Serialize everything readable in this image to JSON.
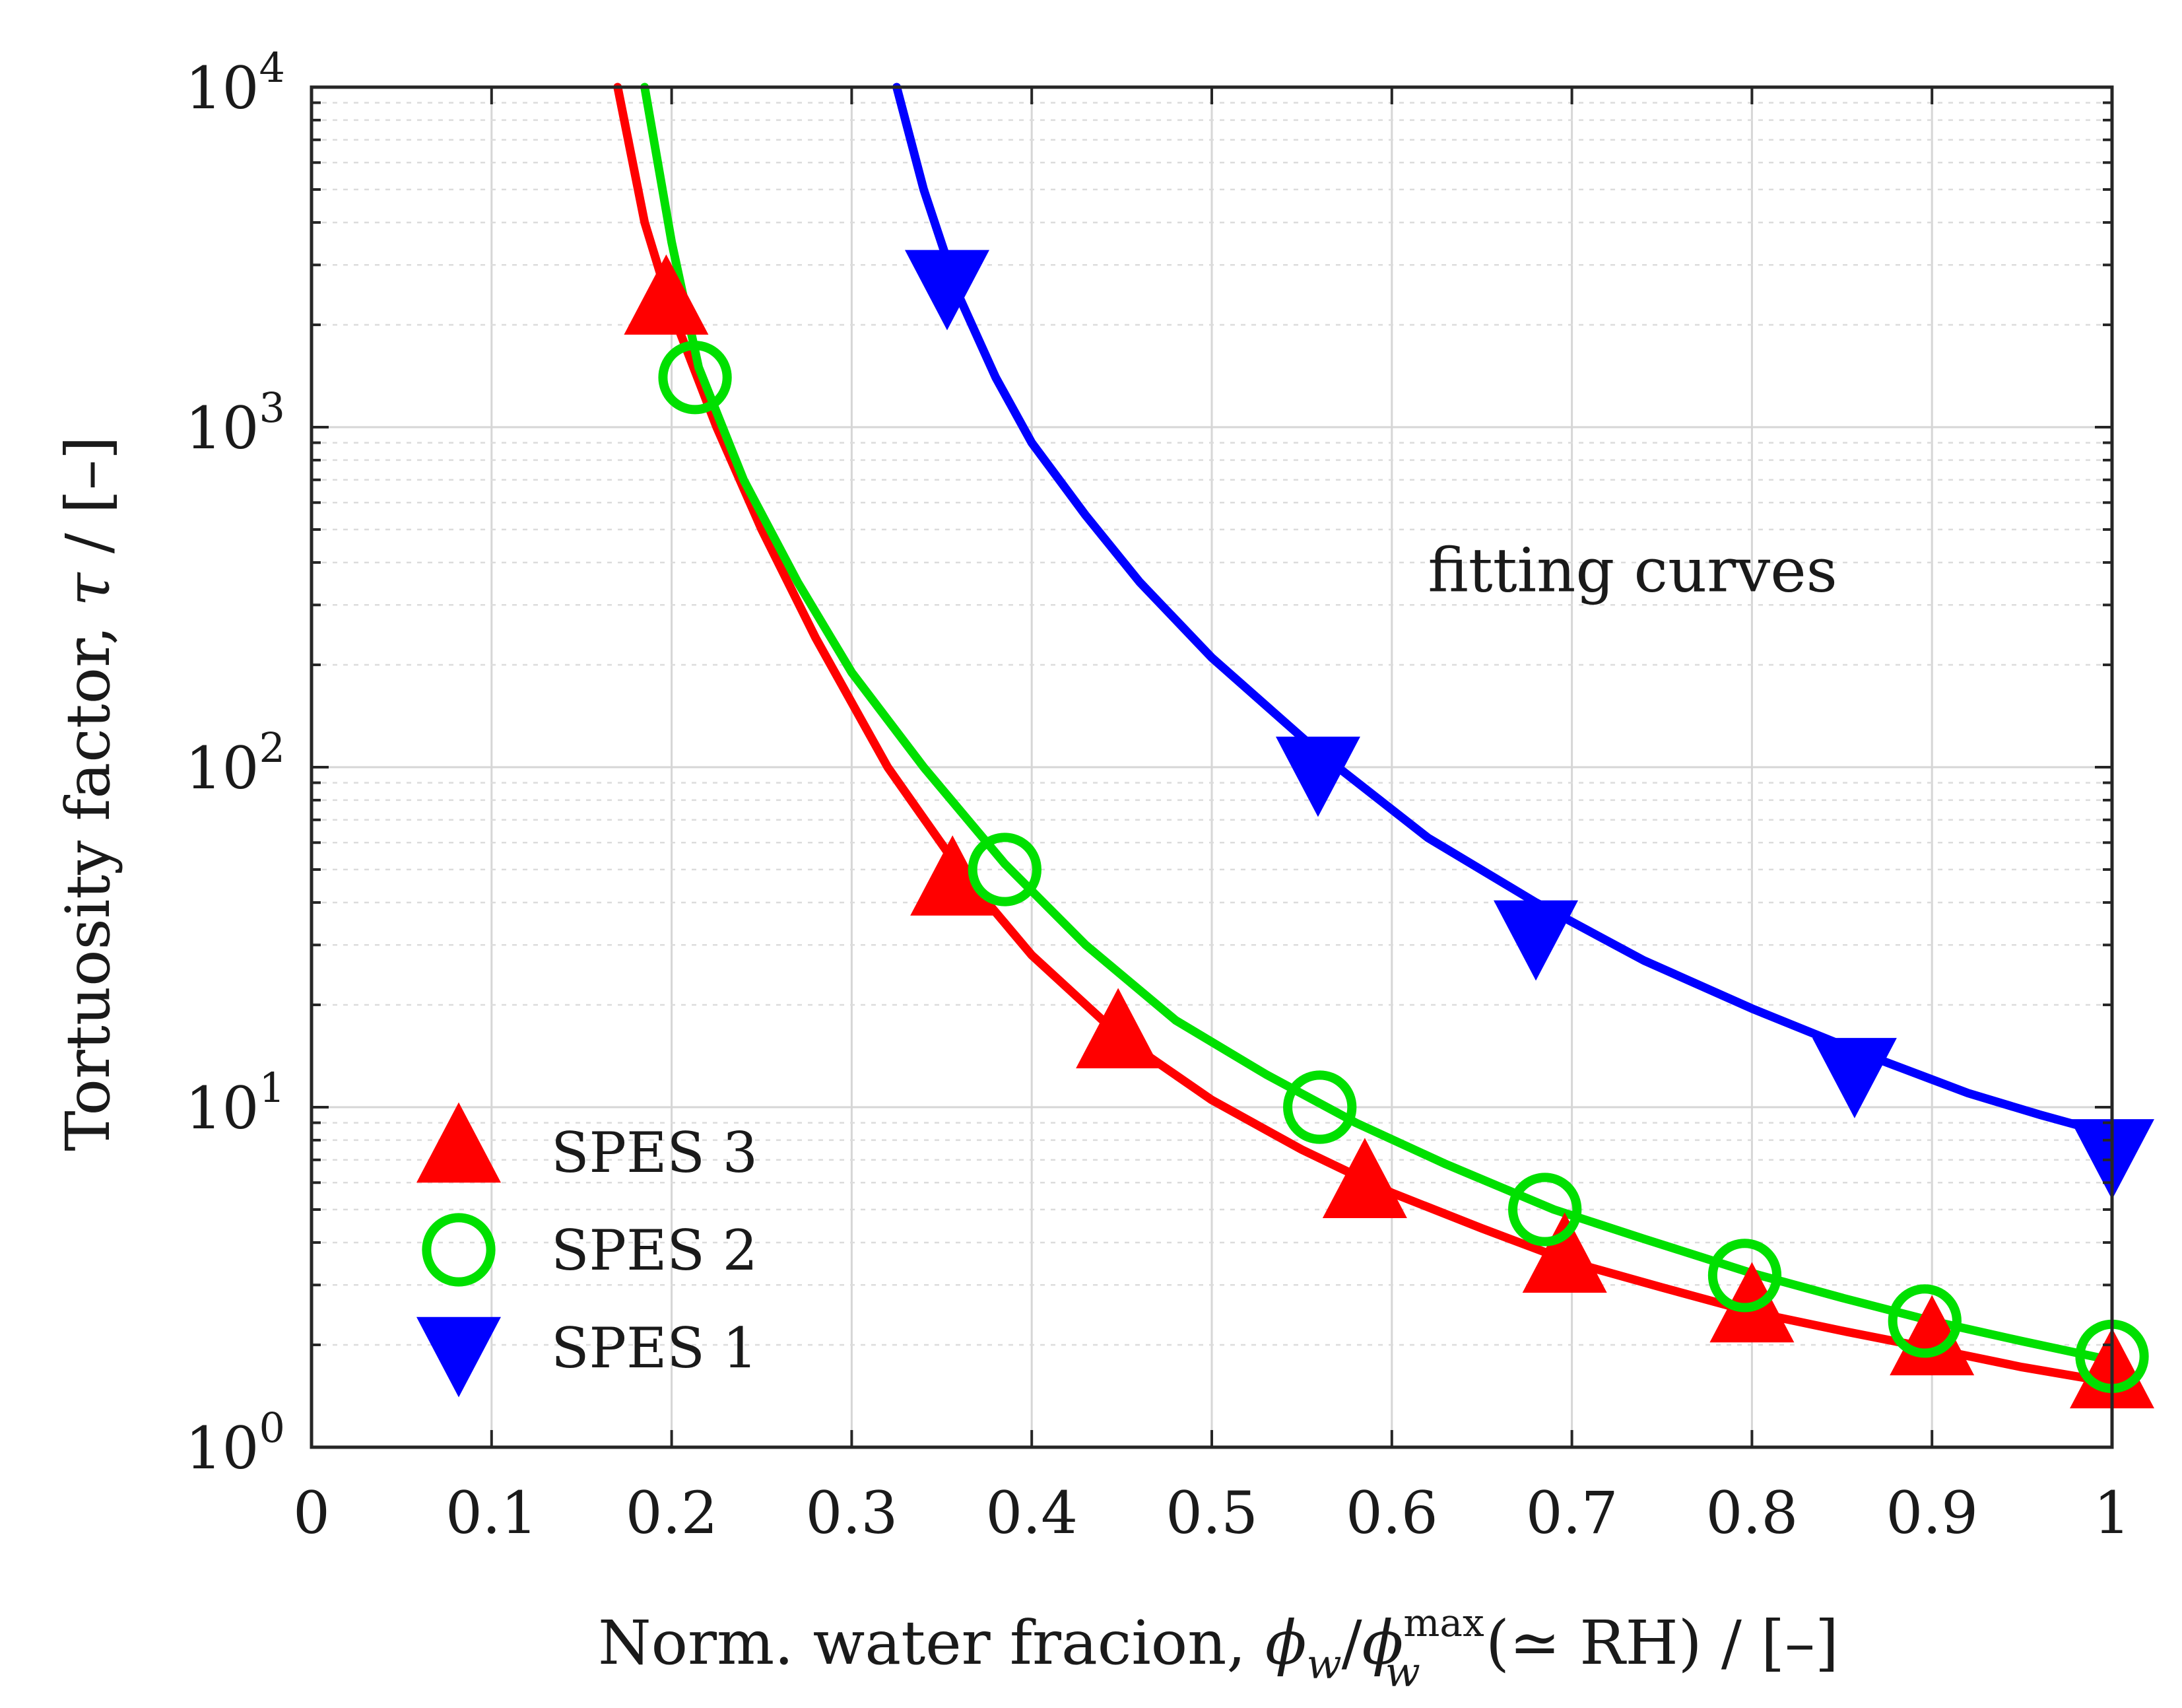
{
  "chart_data": {
    "type": "scatter",
    "title": "",
    "xlabel_parts": {
      "prefix": "Norm. water fracion, ",
      "phi_w": "ϕ",
      "sub_w": "w",
      "slash": "/",
      "phi_w_max": "ϕ",
      "sub_w2": "w",
      "sup_max": "max",
      "suffix": " (≃ RH) / [–]"
    },
    "ylabel_parts": {
      "prefix": "Tortuosity factor, ",
      "tau": "τ",
      "suffix": "  /  [–]"
    },
    "xlim": [
      0,
      1
    ],
    "ylim_log10": [
      0,
      4
    ],
    "yscale": "log",
    "grid": true,
    "x_ticks": [
      0,
      0.1,
      0.2,
      0.3,
      0.4,
      0.5,
      0.6,
      0.7,
      0.8,
      0.9,
      1
    ],
    "x_tick_labels": [
      "0",
      "0.1",
      "0.2",
      "0.3",
      "0.4",
      "0.5",
      "0.6",
      "0.7",
      "0.8",
      "0.9",
      "1"
    ],
    "y_ticks_exp": [
      0,
      1,
      2,
      3,
      4
    ],
    "y_tick_base": "10",
    "y_tick_exponents": [
      "0",
      "1",
      "2",
      "3",
      "4"
    ],
    "annotations": [
      {
        "text": "fitting curves",
        "x": 0.62,
        "y": 380
      }
    ],
    "legend_location": "bottom-left",
    "series": [
      {
        "name": "SPES 3",
        "color": "#ff0000",
        "marker": "triangle-up",
        "points": [
          {
            "x": 0.197,
            "y": 2300
          },
          {
            "x": 0.356,
            "y": 45
          },
          {
            "x": 0.448,
            "y": 16
          },
          {
            "x": 0.585,
            "y": 5.8
          },
          {
            "x": 0.696,
            "y": 3.5
          },
          {
            "x": 0.8,
            "y": 2.5
          },
          {
            "x": 0.9,
            "y": 2.0
          },
          {
            "x": 1.0,
            "y": 1.6
          }
        ],
        "curve": [
          {
            "x": 0.17,
            "y": 10000
          },
          {
            "x": 0.185,
            "y": 4000
          },
          {
            "x": 0.2,
            "y": 2200
          },
          {
            "x": 0.225,
            "y": 1000
          },
          {
            "x": 0.25,
            "y": 500
          },
          {
            "x": 0.28,
            "y": 240
          },
          {
            "x": 0.32,
            "y": 100
          },
          {
            "x": 0.36,
            "y": 50
          },
          {
            "x": 0.4,
            "y": 28
          },
          {
            "x": 0.45,
            "y": 16
          },
          {
            "x": 0.5,
            "y": 10.5
          },
          {
            "x": 0.55,
            "y": 7.5
          },
          {
            "x": 0.6,
            "y": 5.6
          },
          {
            "x": 0.65,
            "y": 4.4
          },
          {
            "x": 0.7,
            "y": 3.5
          },
          {
            "x": 0.75,
            "y": 2.95
          },
          {
            "x": 0.8,
            "y": 2.5
          },
          {
            "x": 0.85,
            "y": 2.2
          },
          {
            "x": 0.9,
            "y": 1.95
          },
          {
            "x": 0.95,
            "y": 1.72
          },
          {
            "x": 1.0,
            "y": 1.55
          }
        ]
      },
      {
        "name": "SPES 2",
        "color": "#00e000",
        "marker": "circle-open",
        "points": [
          {
            "x": 0.213,
            "y": 1400
          },
          {
            "x": 0.385,
            "y": 50
          },
          {
            "x": 0.56,
            "y": 10
          },
          {
            "x": 0.685,
            "y": 5.0
          },
          {
            "x": 0.796,
            "y": 3.2
          },
          {
            "x": 0.896,
            "y": 2.35
          },
          {
            "x": 1.0,
            "y": 1.85
          }
        ],
        "curve": [
          {
            "x": 0.185,
            "y": 10000
          },
          {
            "x": 0.2,
            "y": 3500
          },
          {
            "x": 0.215,
            "y": 1500
          },
          {
            "x": 0.24,
            "y": 700
          },
          {
            "x": 0.27,
            "y": 350
          },
          {
            "x": 0.3,
            "y": 190
          },
          {
            "x": 0.34,
            "y": 100
          },
          {
            "x": 0.385,
            "y": 52
          },
          {
            "x": 0.43,
            "y": 30
          },
          {
            "x": 0.48,
            "y": 18
          },
          {
            "x": 0.53,
            "y": 12.5
          },
          {
            "x": 0.58,
            "y": 9
          },
          {
            "x": 0.63,
            "y": 6.8
          },
          {
            "x": 0.69,
            "y": 5.0
          },
          {
            "x": 0.74,
            "y": 4.1
          },
          {
            "x": 0.8,
            "y": 3.25
          },
          {
            "x": 0.85,
            "y": 2.75
          },
          {
            "x": 0.9,
            "y": 2.35
          },
          {
            "x": 0.95,
            "y": 2.05
          },
          {
            "x": 1.0,
            "y": 1.8
          }
        ]
      },
      {
        "name": "SPES 1",
        "color": "#0000ff",
        "marker": "triangle-down",
        "points": [
          {
            "x": 0.353,
            "y": 2700
          },
          {
            "x": 0.559,
            "y": 100
          },
          {
            "x": 0.68,
            "y": 33
          },
          {
            "x": 0.857,
            "y": 13
          },
          {
            "x": 1.0,
            "y": 7.5
          }
        ],
        "curve": [
          {
            "x": 0.325,
            "y": 10000
          },
          {
            "x": 0.34,
            "y": 5000
          },
          {
            "x": 0.36,
            "y": 2400
          },
          {
            "x": 0.38,
            "y": 1400
          },
          {
            "x": 0.4,
            "y": 900
          },
          {
            "x": 0.43,
            "y": 550
          },
          {
            "x": 0.46,
            "y": 350
          },
          {
            "x": 0.5,
            "y": 210
          },
          {
            "x": 0.56,
            "y": 110
          },
          {
            "x": 0.62,
            "y": 62
          },
          {
            "x": 0.68,
            "y": 40
          },
          {
            "x": 0.74,
            "y": 27
          },
          {
            "x": 0.8,
            "y": 19.5
          },
          {
            "x": 0.86,
            "y": 14.5
          },
          {
            "x": 0.92,
            "y": 11
          },
          {
            "x": 0.96,
            "y": 9.5
          },
          {
            "x": 1.0,
            "y": 8.3
          }
        ]
      }
    ]
  }
}
